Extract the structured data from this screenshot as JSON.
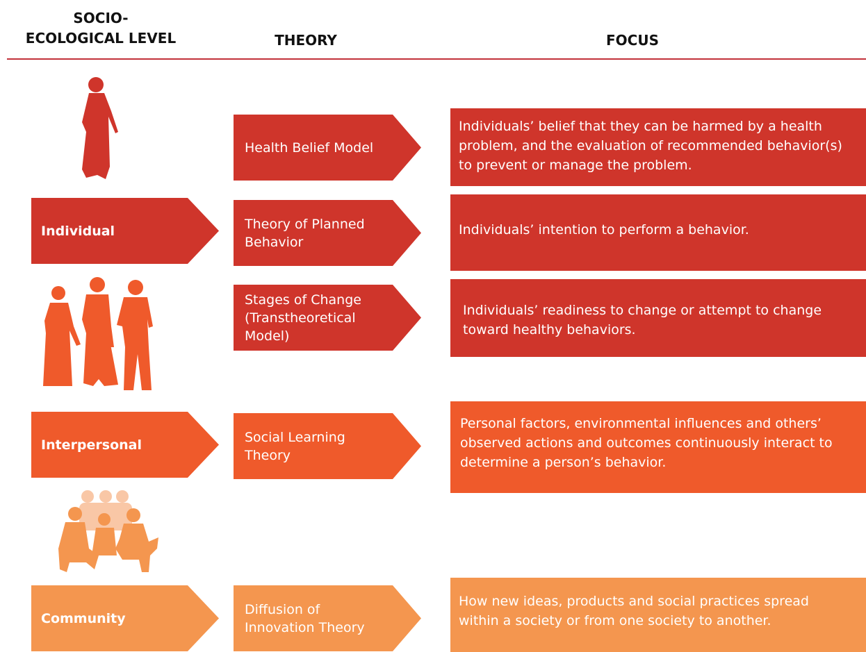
{
  "header": {
    "level": [
      "SOCIO-",
      "ECOLOGICAL LEVEL"
    ],
    "theory": "THEORY",
    "focus": "FOCUS"
  },
  "levels": [
    {
      "label": "Individual"
    },
    {
      "label": "Interpersonal"
    },
    {
      "label": "Community"
    }
  ],
  "rows": [
    {
      "theory": "Health Belief Model",
      "focus": "Individuals’ belief that they can be harmed by a health problem, and the evaluation of recommended behavior(s) to prevent or manage the problem."
    },
    {
      "theory": "Theory of Planned Behavior",
      "focus": "Individuals’ intention to perform a behavior."
    },
    {
      "theory": "Stages of Change (Transtheoretical Model)",
      "focus": "Individuals’ readiness to change or attempt to change toward healthy behaviors."
    },
    {
      "theory": "Social Learning Theory",
      "focus": "Personal factors, environmental influences and others’ observed actions and outcomes continuously interact to determine a person’s behavior."
    },
    {
      "theory": "Diffusion of Innovation Theory",
      "focus": "How new ideas, products and social practices spread within a society or from one society to another."
    }
  ]
}
